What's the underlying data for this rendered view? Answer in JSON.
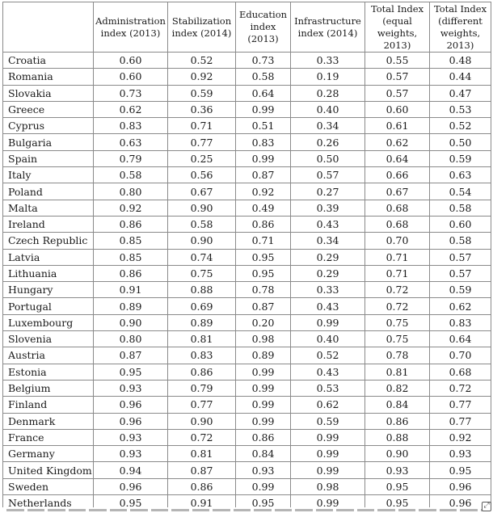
{
  "table": {
    "headers": [
      "",
      "Administration index (2013)",
      "Stabilization index (2014)",
      "Education index (2013)",
      "Infrastructure index (2014)",
      "Total Index (equal weights, 2013)",
      "Total Index (different weights, 2013)"
    ],
    "rows": [
      [
        "Croatia",
        "0.60",
        "0.52",
        "0.73",
        "0.33",
        "0.55",
        "0.48"
      ],
      [
        "Romania",
        "0.60",
        "0.92",
        "0.58",
        "0.19",
        "0.57",
        "0.44"
      ],
      [
        "Slovakia",
        "0.73",
        "0.59",
        "0.64",
        "0.28",
        "0.57",
        "0.47"
      ],
      [
        "Greece",
        "0.62",
        "0.36",
        "0.99",
        "0.40",
        "0.60",
        "0.53"
      ],
      [
        "Cyprus",
        "0.83",
        "0.71",
        "0.51",
        "0.34",
        "0.61",
        "0.52"
      ],
      [
        "Bulgaria",
        "0.63",
        "0.77",
        "0.83",
        "0.26",
        "0.62",
        "0.50"
      ],
      [
        "Spain",
        "0.79",
        "0.25",
        "0.99",
        "0.50",
        "0.64",
        "0.59"
      ],
      [
        "Italy",
        "0.58",
        "0.56",
        "0.87",
        "0.57",
        "0.66",
        "0.63"
      ],
      [
        "Poland",
        "0.80",
        "0.67",
        "0.92",
        "0.27",
        "0.67",
        "0.54"
      ],
      [
        "Malta",
        "0.92",
        "0.90",
        "0.49",
        "0.39",
        "0.68",
        "0.58"
      ],
      [
        "Ireland",
        "0.86",
        "0.58",
        "0.86",
        "0.43",
        "0.68",
        "0.60"
      ],
      [
        "Czech Republic",
        "0.85",
        "0.90",
        "0.71",
        "0.34",
        "0.70",
        "0.58"
      ],
      [
        "Latvia",
        "0.85",
        "0.74",
        "0.95",
        "0.29",
        "0.71",
        "0.57"
      ],
      [
        "Lithuania",
        "0.86",
        "0.75",
        "0.95",
        "0.29",
        "0.71",
        "0.57"
      ],
      [
        "Hungary",
        "0.91",
        "0.88",
        "0.78",
        "0.33",
        "0.72",
        "0.59"
      ],
      [
        "Portugal",
        "0.89",
        "0.69",
        "0.87",
        "0.43",
        "0.72",
        "0.62"
      ],
      [
        "Luxembourg",
        "0.90",
        "0.89",
        "0.20",
        "0.99",
        "0.75",
        "0.83"
      ],
      [
        "Slovenia",
        "0.80",
        "0.81",
        "0.98",
        "0.40",
        "0.75",
        "0.64"
      ],
      [
        "Austria",
        "0.87",
        "0.83",
        "0.89",
        "0.52",
        "0.78",
        "0.70"
      ],
      [
        "Estonia",
        "0.95",
        "0.86",
        "0.99",
        "0.43",
        "0.81",
        "0.68"
      ],
      [
        "Belgium",
        "0.93",
        "0.79",
        "0.99",
        "0.53",
        "0.82",
        "0.72"
      ],
      [
        "Finland",
        "0.96",
        "0.77",
        "0.99",
        "0.62",
        "0.84",
        "0.77"
      ],
      [
        "Denmark",
        "0.96",
        "0.90",
        "0.99",
        "0.59",
        "0.86",
        "0.77"
      ],
      [
        "France",
        "0.93",
        "0.72",
        "0.86",
        "0.99",
        "0.88",
        "0.92"
      ],
      [
        "Germany",
        "0.93",
        "0.81",
        "0.84",
        "0.99",
        "0.90",
        "0.93"
      ],
      [
        "United Kingdom",
        "0.94",
        "0.87",
        "0.93",
        "0.99",
        "0.93",
        "0.95"
      ],
      [
        "Sweden",
        "0.96",
        "0.86",
        "0.99",
        "0.98",
        "0.95",
        "0.96"
      ],
      [
        "Netherlands",
        "0.95",
        "0.91",
        "0.95",
        "0.99",
        "0.95",
        "0.96"
      ]
    ]
  },
  "icons": {
    "corner": "expand-icon"
  },
  "colors": {
    "border": "#8a8a8a",
    "text": "#1a1a1a",
    "background": "#ffffff"
  }
}
